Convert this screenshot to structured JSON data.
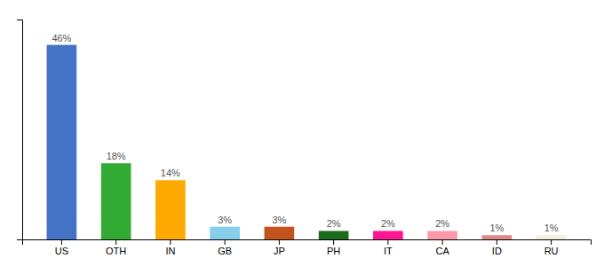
{
  "chart_data": {
    "type": "bar",
    "categories": [
      "US",
      "OTH",
      "IN",
      "GB",
      "JP",
      "PH",
      "IT",
      "CA",
      "ID",
      "RU"
    ],
    "values": [
      46,
      18,
      14,
      3,
      3,
      2,
      2,
      2,
      1,
      1
    ],
    "value_labels": [
      "46%",
      "18%",
      "14%",
      "3%",
      "3%",
      "2%",
      "2%",
      "2%",
      "1%",
      "1%"
    ],
    "colors": [
      "#4472C4",
      "#33AA33",
      "#FFAA00",
      "#87CEEB",
      "#C0541A",
      "#1A6B1A",
      "#FF1493",
      "#FF99AA",
      "#E08888",
      "#F5F0DC"
    ],
    "ylim": [
      0,
      52
    ],
    "data_labels": true,
    "tick_labels": "x",
    "grid": false
  }
}
